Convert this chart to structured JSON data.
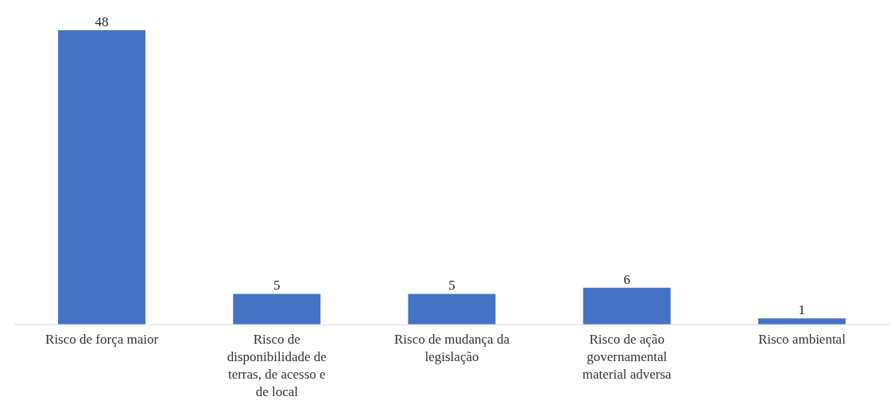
{
  "chart_data": {
    "type": "bar",
    "categories": [
      "Risco de força maior",
      "Risco de disponibilidade de terras, de acesso e de local",
      "Risco de mudança da legislação",
      "Risco de ação governamental material adversa",
      "Risco ambiental"
    ],
    "values": [
      48,
      5,
      5,
      6,
      1
    ],
    "color": "#4472c4",
    "data_labels": true,
    "grid": false,
    "legend": false
  }
}
